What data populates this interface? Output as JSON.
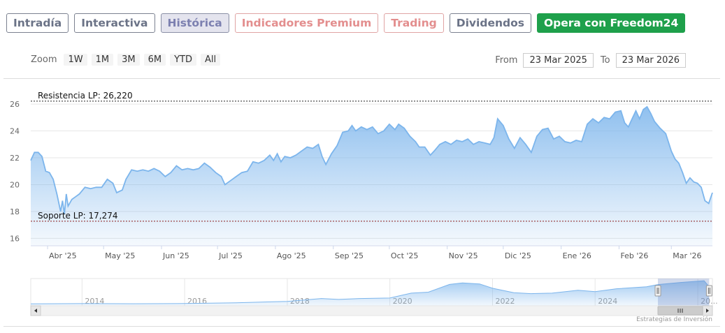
{
  "tabs": [
    {
      "label": "Intradía",
      "style": "default"
    },
    {
      "label": "Interactiva",
      "style": "default"
    },
    {
      "label": "Histórica",
      "style": "active"
    },
    {
      "label": "Indicadores Premium",
      "style": "premium"
    },
    {
      "label": "Trading",
      "style": "trading"
    },
    {
      "label": "Dividendos",
      "style": "default"
    },
    {
      "label": "Opera con Freedom24",
      "style": "cta"
    }
  ],
  "zoom": {
    "label": "Zoom",
    "buttons": [
      "1W",
      "1M",
      "3M",
      "6M",
      "YTD",
      "All"
    ]
  },
  "range": {
    "from_label": "From",
    "from_value": "23 Mar 2025",
    "to_label": "To",
    "to_value": "23 Mar 2026"
  },
  "credits": "Estrategias de Inversión",
  "colors": {
    "series_line": "#7cb5ec",
    "series_fill_top": "#7cb5ec",
    "resistance": "#222222",
    "support": "#8b1a1a",
    "cta": "#1ea04b"
  },
  "chart_data": {
    "type": "area",
    "title": "",
    "ylim": [
      15.5,
      27.2
    ],
    "yticks": [
      16,
      18,
      20,
      22,
      24,
      26
    ],
    "xlim": [
      "2025-03-23",
      "2026-03-23"
    ],
    "xticks": [
      {
        "date": "2025-04-01",
        "label": "Abr '25"
      },
      {
        "date": "2025-05-01",
        "label": "May '25"
      },
      {
        "date": "2025-06-01",
        "label": "Jun '25"
      },
      {
        "date": "2025-07-01",
        "label": "Jul '25"
      },
      {
        "date": "2025-08-01",
        "label": "Ago '25"
      },
      {
        "date": "2025-09-01",
        "label": "Sep '25"
      },
      {
        "date": "2025-10-01",
        "label": "Oct '25"
      },
      {
        "date": "2025-11-01",
        "label": "Nov '25"
      },
      {
        "date": "2025-12-01",
        "label": "Dic '25"
      },
      {
        "date": "2026-01-01",
        "label": "Ene '26"
      },
      {
        "date": "2026-02-01",
        "label": "Feb '26"
      },
      {
        "date": "2026-03-01",
        "label": "Mar '26"
      }
    ],
    "series": [
      {
        "points": [
          [
            "2025-03-23",
            21.8
          ],
          [
            "2025-03-25",
            22.4
          ],
          [
            "2025-03-27",
            22.4
          ],
          [
            "2025-03-29",
            22.1
          ],
          [
            "2025-03-31",
            21.0
          ],
          [
            "2025-04-02",
            20.9
          ],
          [
            "2025-04-04",
            20.4
          ],
          [
            "2025-04-06",
            19.3
          ],
          [
            "2025-04-08",
            18.0
          ],
          [
            "2025-04-09",
            18.8
          ],
          [
            "2025-04-10",
            17.8
          ],
          [
            "2025-04-11",
            19.3
          ],
          [
            "2025-04-12",
            18.4
          ],
          [
            "2025-04-14",
            18.9
          ],
          [
            "2025-04-16",
            19.1
          ],
          [
            "2025-04-18",
            19.3
          ],
          [
            "2025-04-21",
            19.8
          ],
          [
            "2025-04-24",
            19.7
          ],
          [
            "2025-04-27",
            19.8
          ],
          [
            "2025-04-30",
            19.8
          ],
          [
            "2025-05-03",
            20.4
          ],
          [
            "2025-05-06",
            20.1
          ],
          [
            "2025-05-08",
            19.4
          ],
          [
            "2025-05-11",
            19.6
          ],
          [
            "2025-05-13",
            20.4
          ],
          [
            "2025-05-16",
            21.1
          ],
          [
            "2025-05-19",
            21.0
          ],
          [
            "2025-05-22",
            21.1
          ],
          [
            "2025-05-25",
            21.0
          ],
          [
            "2025-05-28",
            21.2
          ],
          [
            "2025-05-31",
            21.0
          ],
          [
            "2025-06-03",
            20.6
          ],
          [
            "2025-06-06",
            20.9
          ],
          [
            "2025-06-09",
            21.4
          ],
          [
            "2025-06-12",
            21.1
          ],
          [
            "2025-06-15",
            21.2
          ],
          [
            "2025-06-18",
            21.1
          ],
          [
            "2025-06-21",
            21.2
          ],
          [
            "2025-06-24",
            21.6
          ],
          [
            "2025-06-27",
            21.3
          ],
          [
            "2025-06-30",
            20.9
          ],
          [
            "2025-07-03",
            20.6
          ],
          [
            "2025-07-05",
            20.0
          ],
          [
            "2025-07-08",
            20.3
          ],
          [
            "2025-07-11",
            20.6
          ],
          [
            "2025-07-14",
            20.9
          ],
          [
            "2025-07-17",
            21.0
          ],
          [
            "2025-07-20",
            21.7
          ],
          [
            "2025-07-23",
            21.6
          ],
          [
            "2025-07-26",
            21.8
          ],
          [
            "2025-07-29",
            22.2
          ],
          [
            "2025-07-31",
            21.8
          ],
          [
            "2025-08-02",
            22.3
          ],
          [
            "2025-08-04",
            21.7
          ],
          [
            "2025-08-06",
            22.1
          ],
          [
            "2025-08-09",
            22.0
          ],
          [
            "2025-08-12",
            22.2
          ],
          [
            "2025-08-15",
            22.5
          ],
          [
            "2025-08-18",
            22.8
          ],
          [
            "2025-08-21",
            22.7
          ],
          [
            "2025-08-24",
            23.0
          ],
          [
            "2025-08-26",
            22.1
          ],
          [
            "2025-08-28",
            21.5
          ],
          [
            "2025-08-31",
            22.3
          ],
          [
            "2025-09-03",
            22.9
          ],
          [
            "2025-09-06",
            23.9
          ],
          [
            "2025-09-09",
            24.0
          ],
          [
            "2025-09-11",
            24.4
          ],
          [
            "2025-09-13",
            24.0
          ],
          [
            "2025-09-16",
            24.3
          ],
          [
            "2025-09-19",
            24.1
          ],
          [
            "2025-09-22",
            24.3
          ],
          [
            "2025-09-25",
            23.8
          ],
          [
            "2025-09-28",
            24.0
          ],
          [
            "2025-10-01",
            24.5
          ],
          [
            "2025-10-04",
            24.1
          ],
          [
            "2025-10-06",
            24.5
          ],
          [
            "2025-10-09",
            24.2
          ],
          [
            "2025-10-12",
            23.6
          ],
          [
            "2025-10-15",
            23.2
          ],
          [
            "2025-10-17",
            22.8
          ],
          [
            "2025-10-20",
            22.8
          ],
          [
            "2025-10-23",
            22.2
          ],
          [
            "2025-10-25",
            22.5
          ],
          [
            "2025-10-28",
            23.0
          ],
          [
            "2025-10-31",
            23.2
          ],
          [
            "2025-11-03",
            23.0
          ],
          [
            "2025-11-06",
            23.3
          ],
          [
            "2025-11-09",
            23.2
          ],
          [
            "2025-11-12",
            23.4
          ],
          [
            "2025-11-15",
            23.0
          ],
          [
            "2025-11-18",
            23.2
          ],
          [
            "2025-11-21",
            23.1
          ],
          [
            "2025-11-24",
            23.0
          ],
          [
            "2025-11-26",
            23.5
          ],
          [
            "2025-11-28",
            24.9
          ],
          [
            "2025-12-01",
            24.4
          ],
          [
            "2025-12-04",
            23.4
          ],
          [
            "2025-12-07",
            22.7
          ],
          [
            "2025-12-10",
            23.5
          ],
          [
            "2025-12-13",
            23.0
          ],
          [
            "2025-12-16",
            22.4
          ],
          [
            "2025-12-19",
            23.6
          ],
          [
            "2025-12-22",
            24.1
          ],
          [
            "2025-12-25",
            24.2
          ],
          [
            "2025-12-28",
            23.4
          ],
          [
            "2025-12-31",
            23.6
          ],
          [
            "2026-01-03",
            23.2
          ],
          [
            "2026-01-06",
            23.1
          ],
          [
            "2026-01-09",
            23.3
          ],
          [
            "2026-01-12",
            23.2
          ],
          [
            "2026-01-15",
            24.5
          ],
          [
            "2026-01-18",
            24.9
          ],
          [
            "2026-01-21",
            24.6
          ],
          [
            "2026-01-24",
            25.0
          ],
          [
            "2026-01-27",
            24.9
          ],
          [
            "2026-01-30",
            25.4
          ],
          [
            "2026-02-02",
            25.5
          ],
          [
            "2026-02-04",
            24.6
          ],
          [
            "2026-02-06",
            24.3
          ],
          [
            "2026-02-08",
            24.9
          ],
          [
            "2026-02-10",
            25.5
          ],
          [
            "2026-02-12",
            24.9
          ],
          [
            "2026-02-14",
            25.6
          ],
          [
            "2026-02-16",
            25.8
          ],
          [
            "2026-02-18",
            25.3
          ],
          [
            "2026-02-20",
            24.7
          ],
          [
            "2026-02-23",
            24.2
          ],
          [
            "2026-02-26",
            23.8
          ],
          [
            "2026-03-01",
            22.5
          ],
          [
            "2026-03-03",
            21.9
          ],
          [
            "2026-03-05",
            21.6
          ],
          [
            "2026-03-07",
            20.9
          ],
          [
            "2026-03-09",
            20.1
          ],
          [
            "2026-03-11",
            20.5
          ],
          [
            "2026-03-13",
            20.2
          ],
          [
            "2026-03-15",
            20.1
          ],
          [
            "2026-03-17",
            19.8
          ],
          [
            "2026-03-19",
            18.8
          ],
          [
            "2026-03-21",
            18.6
          ],
          [
            "2026-03-23",
            19.4
          ]
        ]
      }
    ],
    "plot_lines": [
      {
        "label": "Resistencia LP: 26,220",
        "value": 26.22,
        "style": "resistance"
      },
      {
        "label": "Soporte LP: 17,274",
        "value": 17.274,
        "style": "support"
      }
    ],
    "navigator": {
      "year_labels": [
        "2014",
        "2016",
        "2018",
        "2020",
        "2022",
        "2024",
        "20..."
      ],
      "year_starts": [
        "2014-01-01",
        "2016-01-01",
        "2018-01-01",
        "2020-01-01",
        "2022-01-01",
        "2024-01-01",
        "2026-01-01"
      ],
      "xlim": [
        "2013-01-01",
        "2026-04-15"
      ],
      "series": [
        [
          "2013-01-01",
          2.0
        ],
        [
          "2014-01-01",
          2.2
        ],
        [
          "2015-01-01",
          2.1
        ],
        [
          "2016-01-01",
          2.3
        ],
        [
          "2017-01-01",
          3.0
        ],
        [
          "2018-01-01",
          4.5
        ],
        [
          "2018-09-01",
          7.5
        ],
        [
          "2019-01-01",
          6.5
        ],
        [
          "2019-06-01",
          7.5
        ],
        [
          "2020-01-01",
          8.0
        ],
        [
          "2020-06-01",
          13.0
        ],
        [
          "2020-10-01",
          14.0
        ],
        [
          "2021-03-01",
          22.0
        ],
        [
          "2021-06-01",
          23.5
        ],
        [
          "2021-10-01",
          22.5
        ],
        [
          "2022-01-01",
          18.0
        ],
        [
          "2022-06-01",
          13.5
        ],
        [
          "2022-10-01",
          12.5
        ],
        [
          "2023-03-01",
          13.0
        ],
        [
          "2023-09-01",
          16.0
        ],
        [
          "2024-01-01",
          14.5
        ],
        [
          "2024-06-01",
          17.5
        ],
        [
          "2025-01-01",
          19.5
        ],
        [
          "2025-03-23",
          21.8
        ],
        [
          "2025-09-01",
          24.0
        ],
        [
          "2026-02-15",
          25.8
        ],
        [
          "2026-03-23",
          19.4
        ]
      ],
      "ylim": [
        0,
        28
      ],
      "selected": [
        "2025-03-23",
        "2026-03-23"
      ]
    }
  }
}
